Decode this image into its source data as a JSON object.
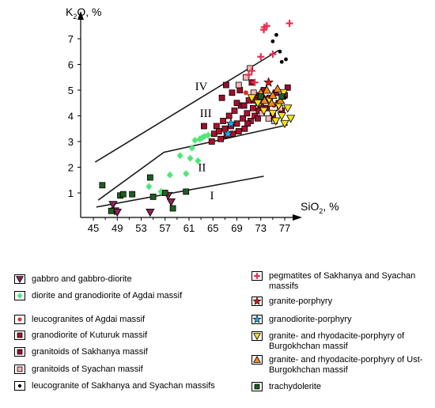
{
  "chart_data": {
    "type": "scatter",
    "x_label_main": "SiO",
    "x_label_sub": "2",
    "x_label_unit": ", %",
    "y_label_main": "K",
    "y_label_sub": "2",
    "y_label_tail": "O, %",
    "xlim": [
      45,
      78
    ],
    "ylim": [
      0,
      8
    ],
    "x_ticks": [
      "45",
      "49",
      "53",
      "57",
      "61",
      "65",
      "69",
      "73",
      "77"
    ],
    "y_ticks": [
      "1",
      "2",
      "3",
      "4",
      "5",
      "6",
      "7"
    ],
    "region_labels": [
      {
        "text": "I",
        "x": 64.5,
        "y": 0.75
      },
      {
        "text": "II",
        "x": 62.5,
        "y": 1.85
      },
      {
        "text": "III",
        "x": 62.8,
        "y": 3.95
      },
      {
        "text": "IV",
        "x": 62.0,
        "y": 5.0
      }
    ],
    "boundary_lines": [
      [
        [
          45.5,
          0.45
        ],
        [
          73.5,
          1.65
        ]
      ],
      [
        [
          45.8,
          0.72
        ],
        [
          56.8,
          2.58
        ],
        [
          77.5,
          3.65
        ]
      ],
      [
        [
          45.3,
          2.2
        ],
        [
          76.0,
          6.55
        ]
      ]
    ],
    "series": [
      {
        "name": "gabbro and gabbro-diorite",
        "marker": "tri-down",
        "color": "#8b2252",
        "points": [
          [
            48.3,
            0.55
          ],
          [
            48.6,
            0.3
          ],
          [
            49.0,
            0.25
          ],
          [
            54.5,
            0.25
          ],
          [
            57.5,
            0.9
          ],
          [
            58.0,
            0.65
          ]
        ]
      },
      {
        "name": "diorite and granodiorite of Agdai massif",
        "marker": "diamond",
        "color": "#4de877",
        "points": [
          [
            54.3,
            1.25
          ],
          [
            56.3,
            1.05
          ],
          [
            57.8,
            1.7
          ],
          [
            59.5,
            2.45
          ],
          [
            60.5,
            1.75
          ],
          [
            61.2,
            2.35
          ],
          [
            61.5,
            2.75
          ],
          [
            62.0,
            3.05
          ],
          [
            62.5,
            2.25
          ],
          [
            62.8,
            3.1
          ],
          [
            63.2,
            3.15
          ],
          [
            63.6,
            3.2
          ],
          [
            64.2,
            3.25
          ]
        ]
      },
      {
        "name": "leucogranites of Agdai massif",
        "marker": "dot",
        "color": "#e03020",
        "points": [
          [
            70.5,
            4.9
          ],
          [
            73.8,
            4.7
          ],
          [
            75.2,
            4.4
          ]
        ]
      },
      {
        "name": "granodiorite of Kuturuk massif",
        "marker": "square",
        "color": "#b0102a",
        "points": [
          [
            64.8,
            3.0
          ],
          [
            65.2,
            3.3
          ],
          [
            65.6,
            3.6
          ],
          [
            66.0,
            3.4
          ],
          [
            66.3,
            3.1
          ],
          [
            66.7,
            3.8
          ],
          [
            67.0,
            3.5
          ],
          [
            67.3,
            3.25
          ],
          [
            67.7,
            4.0
          ],
          [
            68.0,
            3.6
          ],
          [
            68.3,
            3.3
          ],
          [
            68.6,
            4.2
          ],
          [
            69.0,
            3.7
          ],
          [
            69.3,
            3.4
          ],
          [
            69.7,
            4.4
          ],
          [
            70.0,
            3.9
          ],
          [
            70.3,
            3.5
          ],
          [
            70.7,
            4.1
          ],
          [
            71.0,
            4.6
          ],
          [
            71.3,
            3.8
          ],
          [
            71.7,
            4.3
          ],
          [
            72.0,
            4.0
          ],
          [
            72.3,
            4.8
          ],
          [
            72.7,
            4.2
          ]
        ]
      },
      {
        "name": "granitoids of Sakhanya massif",
        "marker": "square",
        "color": "#9a0e2e",
        "points": [
          [
            63.5,
            3.6
          ],
          [
            66.5,
            4.7
          ],
          [
            67.2,
            5.2
          ],
          [
            68.2,
            4.9
          ],
          [
            69.0,
            4.5
          ],
          [
            69.5,
            5.0
          ],
          [
            70.2,
            4.4
          ],
          [
            70.8,
            3.7
          ],
          [
            71.5,
            5.3
          ],
          [
            72.0,
            4.6
          ],
          [
            72.5,
            3.9
          ],
          [
            73.0,
            4.4
          ],
          [
            73.5,
            5.0
          ],
          [
            74.0,
            4.3
          ],
          [
            74.5,
            4.7
          ],
          [
            75.0,
            4.0
          ],
          [
            75.5,
            4.9
          ],
          [
            76.0,
            4.5
          ],
          [
            76.5,
            4.2
          ],
          [
            77.0,
            4.8
          ],
          [
            77.5,
            5.1
          ]
        ]
      },
      {
        "name": "granitoids of Syachan massif",
        "marker": "square",
        "color": "#f0b8b8",
        "points": [
          [
            69.3,
            5.2
          ],
          [
            70.5,
            5.5
          ],
          [
            71.2,
            5.85
          ],
          [
            71.8,
            4.9
          ],
          [
            72.6,
            4.5
          ],
          [
            73.2,
            4.1
          ],
          [
            74.3,
            3.9
          ],
          [
            75.3,
            3.8
          ],
          [
            76.2,
            4.3
          ]
        ]
      },
      {
        "name": "leucogranite of Sakhanya and Syachan massifs",
        "marker": "ring",
        "color": "#000000",
        "points": [
          [
            75.0,
            6.9
          ],
          [
            75.6,
            7.15
          ],
          [
            76.2,
            6.5
          ],
          [
            76.5,
            6.1
          ],
          [
            77.2,
            6.2
          ],
          [
            77.0,
            4.7
          ]
        ]
      },
      {
        "name": "pegmatites of Sakhanya and Syachan massifs",
        "marker": "plus",
        "color": "#e8304f",
        "points": [
          [
            71.0,
            5.6
          ],
          [
            71.5,
            5.75
          ],
          [
            72.0,
            5.3
          ],
          [
            73.0,
            6.3
          ],
          [
            73.5,
            7.35
          ],
          [
            74.0,
            7.5
          ],
          [
            73.6,
            7.45
          ],
          [
            75.0,
            6.4
          ],
          [
            77.8,
            7.6
          ]
        ]
      },
      {
        "name": "granite-porphyry",
        "marker": "star",
        "color": "#d81818",
        "points": [
          [
            74.3,
            5.3
          ]
        ]
      },
      {
        "name": "granodiorite-porphyry",
        "marker": "star",
        "color": "#22a8e8",
        "points": [
          [
            67.5,
            3.3
          ],
          [
            68.0,
            3.7
          ]
        ]
      },
      {
        "name": "granite- and rhyodacite-porphyry of Burgokhchan massif",
        "marker": "tri-down",
        "color": "#f5e21a",
        "points": [
          [
            71.5,
            4.7
          ],
          [
            72.5,
            4.5
          ],
          [
            73.5,
            4.2
          ],
          [
            74.5,
            4.6
          ],
          [
            75.0,
            4.1
          ],
          [
            75.5,
            3.8
          ],
          [
            76.0,
            4.4
          ],
          [
            76.5,
            4.0
          ],
          [
            77.0,
            3.7
          ],
          [
            77.5,
            4.3
          ],
          [
            78.0,
            3.9
          ],
          [
            76.8,
            4.9
          ]
        ]
      },
      {
        "name": "granite- and rhyodacite-porphyry of Ust-Burgokhchan massif",
        "marker": "tri-up",
        "color": "#f08a1a",
        "points": [
          [
            73.0,
            4.9
          ],
          [
            74.0,
            5.0
          ],
          [
            75.0,
            4.8
          ],
          [
            75.8,
            5.05
          ],
          [
            76.3,
            4.6
          ],
          [
            74.8,
            4.5
          ],
          [
            73.6,
            4.6
          ]
        ]
      },
      {
        "name": "trachydolerite",
        "marker": "square",
        "color": "#1f5e22",
        "points": [
          [
            46.5,
            1.3
          ],
          [
            48.0,
            0.3
          ],
          [
            49.5,
            0.9
          ],
          [
            50.0,
            0.95
          ],
          [
            51.5,
            0.95
          ],
          [
            54.5,
            1.6
          ],
          [
            55.0,
            0.85
          ],
          [
            57.0,
            1.0
          ],
          [
            58.3,
            0.4
          ],
          [
            60.5,
            1.05
          ],
          [
            73.0,
            4.75
          ],
          [
            76.5,
            4.75
          ]
        ]
      }
    ]
  }
}
